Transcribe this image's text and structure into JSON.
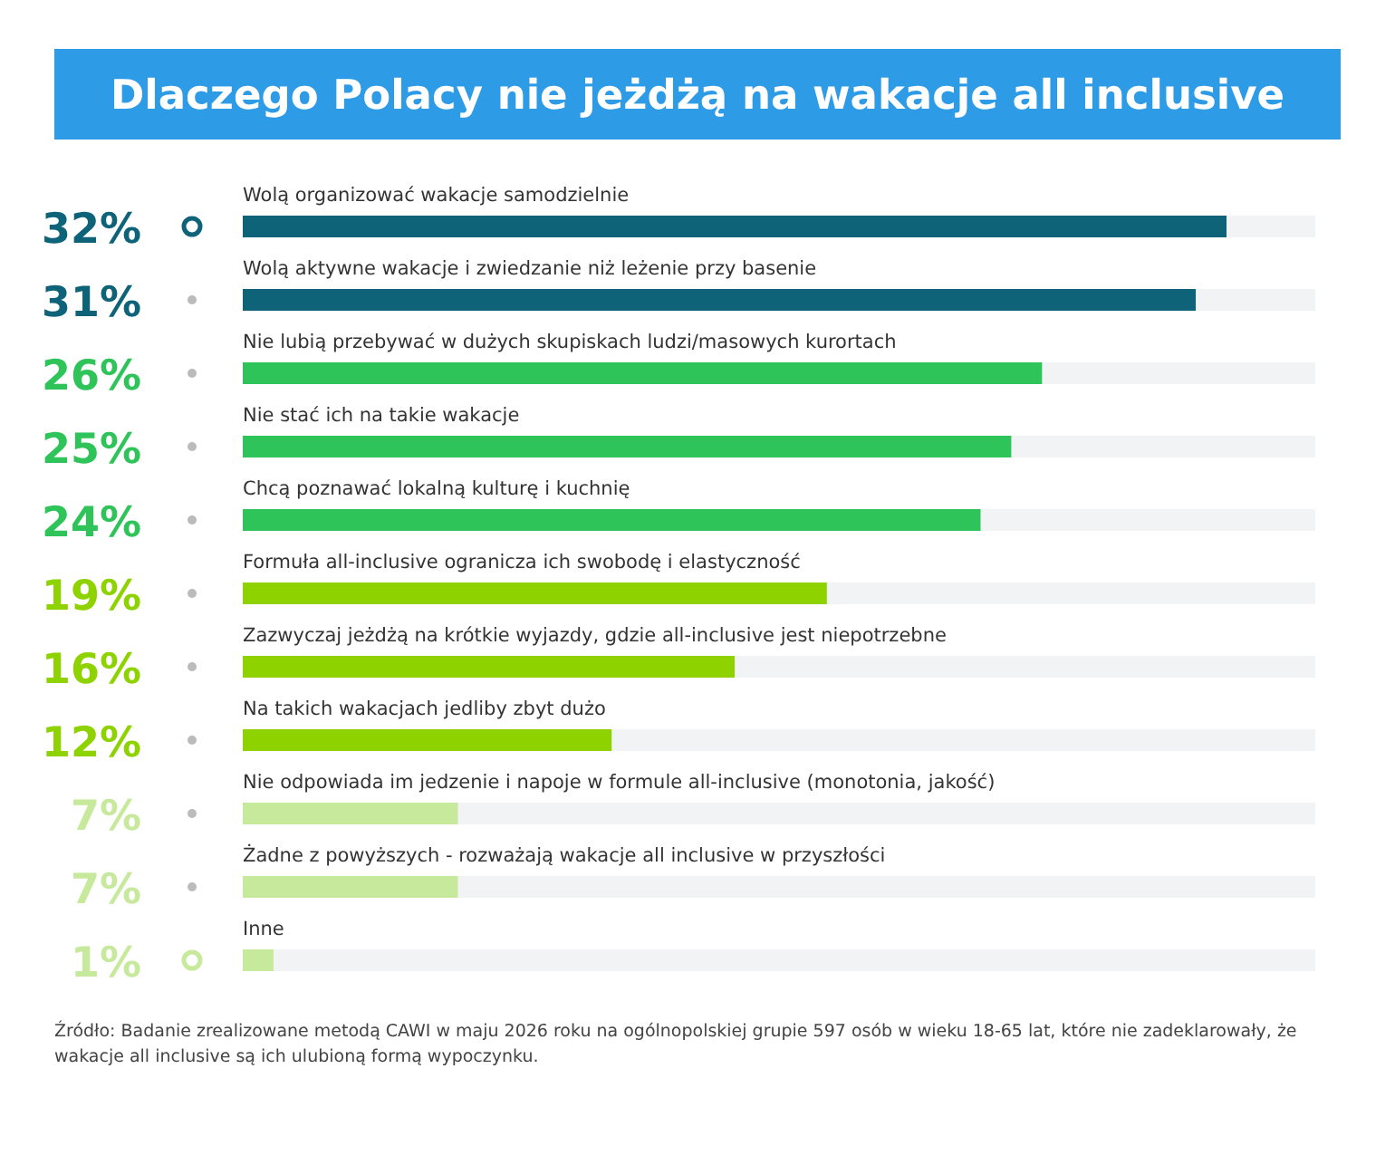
{
  "chart_data": {
    "type": "bar",
    "orientation": "horizontal",
    "title": "Dlaczego Polacy nie jeżdżą na wakacje all inclusive",
    "categories": [
      "Wolą organizować wakacje samodzielnie",
      "Wolą aktywne wakacje i zwiedzanie niż leżenie przy basenie",
      "Nie lubią przebywać w dużych skupiskach ludzi/masowych kurortach",
      "Nie stać ich na takie wakacje",
      "Chcą poznawać lokalną kulturę i kuchnię",
      "Formuła all-inclusive ogranicza ich swobodę i elastyczność",
      "Zazwyczaj jeżdżą na krótkie wyjazdy, gdzie all-inclusive jest niepotrzebne",
      "Na takich wakacjach jedliby zbyt dużo",
      "Nie odpowiada im jedzenie i napoje w formule all-inclusive (monotonia, jakość)",
      "Żadne z powyższych - rozważają wakacje all inclusive w przyszłości",
      "Inne"
    ],
    "values": [
      32,
      31,
      26,
      25,
      24,
      19,
      16,
      12,
      7,
      7,
      1
    ],
    "value_labels": [
      "32%",
      "31%",
      "26%",
      "25%",
      "24%",
      "19%",
      "16%",
      "12%",
      "7%",
      "7%",
      "1%"
    ],
    "colors": [
      "#0e6378",
      "#0e6378",
      "#2ec45a",
      "#2ec45a",
      "#2ec45a",
      "#8ed300",
      "#8ed300",
      "#8ed300",
      "#c6e99c",
      "#c6e99c",
      "#c6e99c"
    ],
    "annotations": [
      "Źródło: Badanie zrealizowane metodą CAWI w maju 2026 roku na ogólnopolskiej grupie 597 osób w wieku 18-65 lat, które nie zadeklarowały, że wakacje all inclusive są ich ulubioną formą wypoczynku."
    ]
  }
}
